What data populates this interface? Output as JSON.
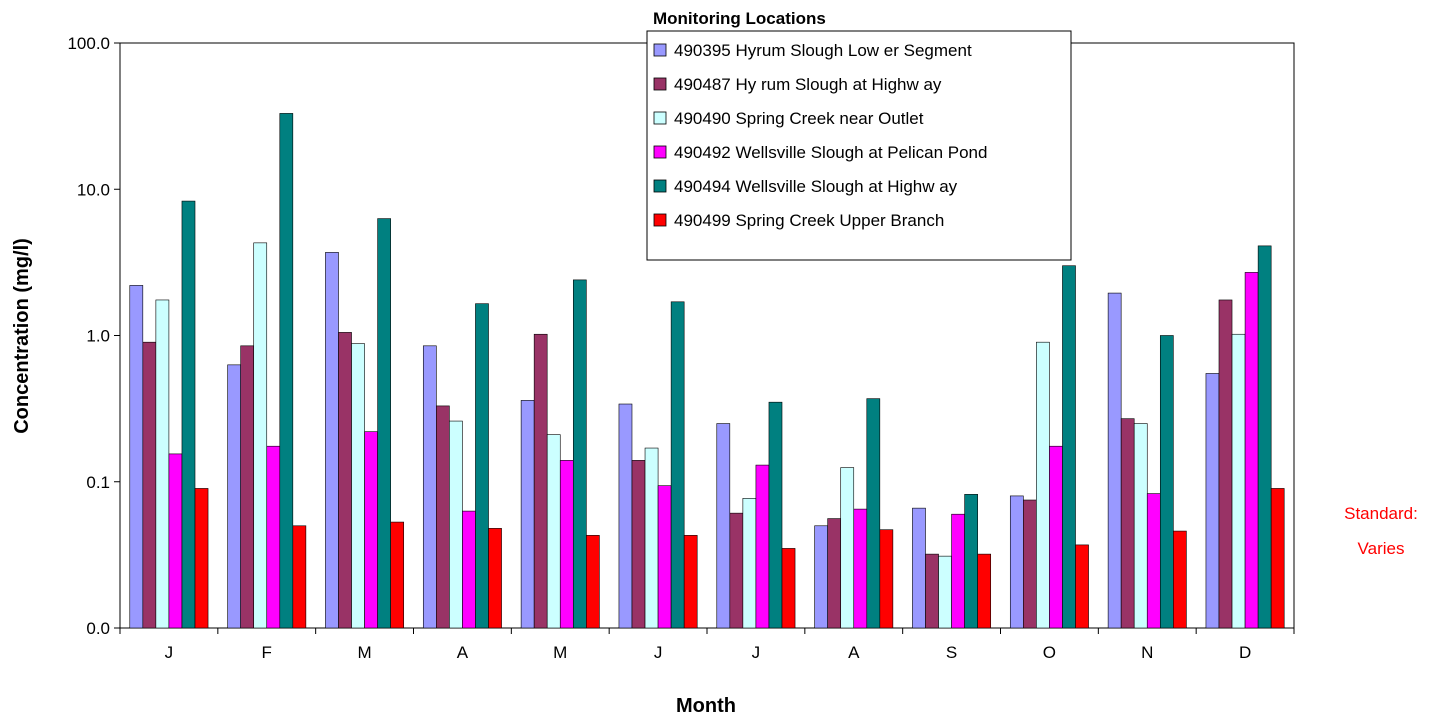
{
  "chart_data": {
    "type": "bar",
    "ylabel": "Concentration (mg/l)",
    "xlabel": "Month",
    "yscale": "log",
    "ylim": [
      0.01,
      100
    ],
    "yticks": [
      0.01,
      0.1,
      1,
      10,
      100
    ],
    "ytick_labels": [
      "0.0",
      "0.1",
      "1.0",
      "10.0",
      "100.0"
    ],
    "grid": false,
    "legend_title": "Monitoring Locations",
    "legend_position": "top-center",
    "annotation": {
      "line1": "Standard:",
      "line2": "Varies",
      "color": "#ff0000"
    },
    "categories": [
      "J",
      "F",
      "M",
      "A",
      "M",
      "J",
      "J",
      "A",
      "S",
      "O",
      "N",
      "D"
    ],
    "series": [
      {
        "name": "490395 Hyrum Slough Low er Segment",
        "color": "#9999ff",
        "values": [
          2.2,
          0.63,
          3.7,
          0.85,
          0.36,
          0.34,
          0.25,
          0.05,
          0.066,
          0.08,
          1.95,
          0.55
        ]
      },
      {
        "name": "490487 Hy rum Slough at Highw ay",
        "color": "#993366",
        "values": [
          0.9,
          0.85,
          1.05,
          0.33,
          1.02,
          0.14,
          0.061,
          0.056,
          0.032,
          0.075,
          0.27,
          1.75
        ]
      },
      {
        "name": "490490 Spring Creek near Outlet",
        "color": "#ccffff",
        "values": [
          1.75,
          4.3,
          0.88,
          0.26,
          0.21,
          0.17,
          0.077,
          0.125,
          0.031,
          0.9,
          0.25,
          1.02
        ]
      },
      {
        "name": "490492 Wellsville Slough at Pelican Pond",
        "color": "#ff00ff",
        "values": [
          0.155,
          0.175,
          0.22,
          0.063,
          0.14,
          0.094,
          0.13,
          0.065,
          0.06,
          0.175,
          0.083,
          2.7
        ]
      },
      {
        "name": "490494 Wellsville Slough at Highw ay",
        "color": "#008080",
        "values": [
          8.3,
          33.0,
          6.3,
          1.65,
          2.4,
          1.7,
          0.35,
          0.37,
          0.082,
          3.0,
          1.0,
          4.1
        ]
      },
      {
        "name": "490499 Spring Creek Upper Branch",
        "color": "#ff0000",
        "values": [
          0.09,
          0.05,
          0.053,
          0.048,
          0.043,
          0.043,
          0.035,
          0.047,
          0.032,
          0.037,
          0.046,
          0.09
        ]
      }
    ]
  }
}
